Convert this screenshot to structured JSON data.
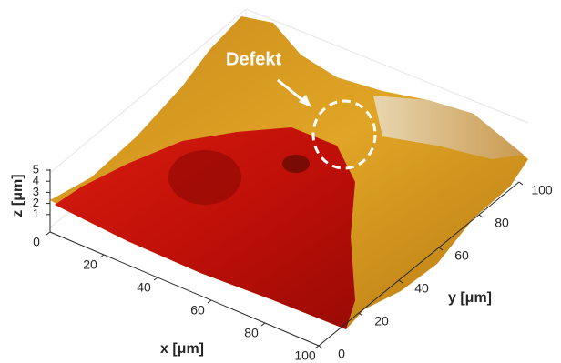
{
  "chart_data": {
    "type": "surface3d",
    "annotation": "Defekt",
    "xlabel": "x [μm]",
    "ylabel": "y [μm]",
    "zlabel": "z [μm]",
    "xlim": [
      0,
      100
    ],
    "xticks": [
      0,
      20,
      40,
      60,
      80,
      100
    ],
    "ylim": [
      0,
      100
    ],
    "yticks": [
      0,
      20,
      40,
      60,
      80,
      100
    ],
    "zlim": [
      0,
      5
    ],
    "zticks": [
      1,
      2,
      3,
      4,
      5
    ]
  }
}
